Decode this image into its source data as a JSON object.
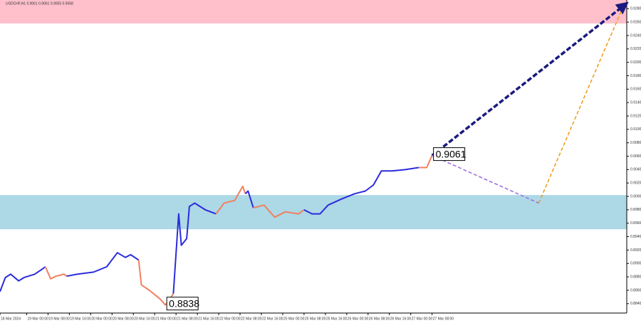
{
  "chart_data": {
    "type": "line",
    "title": "USDCHF,H1 0.9061 0.9061 0.9055 0.9058",
    "xlim": [
      0,
      235
    ],
    "ylim": [
      0.8826,
      0.9293
    ],
    "xticks": [
      {
        "value": 0,
        "label": "18 Mar 2024"
      },
      {
        "value": 10,
        "label": "19 Mar 00:00"
      },
      {
        "value": 18,
        "label": "19 Mar 08:00"
      },
      {
        "value": 26,
        "label": "19 Mar 16:00"
      },
      {
        "value": 34,
        "label": "20 Mar 00:00"
      },
      {
        "value": 42,
        "label": "20 Mar 08:00"
      },
      {
        "value": 50,
        "label": "20 Mar 16:00"
      },
      {
        "value": 58,
        "label": "21 Mar 00:00"
      },
      {
        "value": 66,
        "label": "21 Mar 08:00"
      },
      {
        "value": 74,
        "label": "21 Mar 16:00"
      },
      {
        "value": 82,
        "label": "22 Mar 00:00"
      },
      {
        "value": 90,
        "label": "22 Mar 08:00"
      },
      {
        "value": 98,
        "label": "22 Mar 16:00"
      },
      {
        "value": 106,
        "label": "25 Mar 00:00"
      },
      {
        "value": 114,
        "label": "25 Mar 08:00"
      },
      {
        "value": 122,
        "label": "25 Mar 16:00"
      },
      {
        "value": 130,
        "label": "26 Mar 00:00"
      },
      {
        "value": 138,
        "label": "26 Mar 08:00"
      },
      {
        "value": 146,
        "label": "26 Mar 16:00"
      },
      {
        "value": 154,
        "label": "27 Mar 00:00"
      },
      {
        "value": 162,
        "label": "27 Mar 08:00"
      }
    ],
    "yticks": [
      {
        "value": 0.884,
        "label": "0.8840"
      },
      {
        "value": 0.886,
        "label": "0.8860"
      },
      {
        "value": 0.888,
        "label": "0.8880"
      },
      {
        "value": 0.89,
        "label": "0.8900"
      },
      {
        "value": 0.892,
        "label": "0.8920"
      },
      {
        "value": 0.894,
        "label": "0.8940"
      },
      {
        "value": 0.896,
        "label": "0.8960"
      },
      {
        "value": 0.898,
        "label": "0.8980"
      },
      {
        "value": 0.9,
        "label": "0.9000"
      },
      {
        "value": 0.902,
        "label": "0.9020"
      },
      {
        "value": 0.904,
        "label": "0.9040"
      },
      {
        "value": 0.906,
        "label": "0.9060"
      },
      {
        "value": 0.908,
        "label": "0.9080"
      },
      {
        "value": 0.91,
        "label": "0.9100"
      },
      {
        "value": 0.912,
        "label": "0.9120"
      },
      {
        "value": 0.914,
        "label": "0.9140"
      },
      {
        "value": 0.916,
        "label": "0.9160"
      },
      {
        "value": 0.918,
        "label": "0.9180"
      },
      {
        "value": 0.92,
        "label": "0.9200"
      },
      {
        "value": 0.922,
        "label": "0.9220"
      },
      {
        "value": 0.924,
        "label": "0.9240"
      },
      {
        "value": 0.926,
        "label": "0.9260"
      },
      {
        "value": 0.928,
        "label": "0.9280"
      }
    ],
    "zones": [
      {
        "color": "#ffc0cb",
        "from": 0.9258,
        "to": 0.9293
      },
      {
        "color": "#add8e6",
        "from": 0.8951,
        "to": 0.9002
      }
    ],
    "segments": [
      {
        "color": "#2b2bdd",
        "x": [
          0,
          2,
          4,
          7,
          9,
          13,
          16,
          17
        ],
        "values": [
          0.8858,
          0.8879,
          0.8884,
          0.8874,
          0.8879,
          0.8884,
          0.8892,
          0.8895
        ]
      },
      {
        "color": "#f08060",
        "x": [
          17,
          19,
          21,
          24,
          25
        ],
        "values": [
          0.8895,
          0.8877,
          0.8881,
          0.8884,
          0.8881
        ]
      },
      {
        "color": "#2b2bdd",
        "x": [
          25,
          29,
          35,
          40,
          44,
          47,
          49,
          52
        ],
        "values": [
          0.8881,
          0.8884,
          0.8887,
          0.8895,
          0.8916,
          0.8909,
          0.8913,
          0.8905
        ]
      },
      {
        "color": "#f08060",
        "x": [
          52,
          53,
          56,
          60,
          62,
          64,
          65
        ],
        "values": [
          0.8905,
          0.8868,
          0.886,
          0.8847,
          0.8838,
          0.8849,
          0.8855
        ]
      },
      {
        "color": "#2b2bdd",
        "x": [
          65,
          67,
          68,
          70,
          71,
          73,
          77,
          81
        ],
        "values": [
          0.8855,
          0.8974,
          0.8927,
          0.8937,
          0.8985,
          0.899,
          0.898,
          0.8974
        ]
      },
      {
        "color": "#f08060",
        "x": [
          81,
          84,
          88,
          91,
          92
        ],
        "values": [
          0.8974,
          0.899,
          0.8994,
          0.9015,
          0.9004
        ]
      },
      {
        "color": "#2b2bdd",
        "x": [
          92,
          93,
          95
        ],
        "values": [
          0.9004,
          0.9008,
          0.8983
        ]
      },
      {
        "color": "#f08060",
        "x": [
          95,
          99,
          103,
          107,
          112,
          114
        ],
        "values": [
          0.8983,
          0.8987,
          0.8969,
          0.8977,
          0.8974,
          0.898
        ]
      },
      {
        "color": "#2b2bdd",
        "x": [
          114,
          117,
          120,
          123,
          128,
          133,
          137,
          140,
          143,
          147,
          152,
          157
        ],
        "values": [
          0.898,
          0.8974,
          0.8974,
          0.8987,
          0.8996,
          0.9004,
          0.9008,
          0.9017,
          0.9038,
          0.9038,
          0.904,
          0.9043
        ]
      },
      {
        "color": "#f08060",
        "x": [
          157,
          160,
          162
        ],
        "values": [
          0.9043,
          0.9043,
          0.9061
        ]
      }
    ],
    "forecast": [
      {
        "color": "#1a1a80",
        "x": [
          162,
          235
        ],
        "values": [
          0.9061,
          0.9288
        ]
      },
      {
        "color": "#a070e0",
        "x": [
          162,
          202
        ],
        "values": [
          0.9061,
          0.899
        ]
      },
      {
        "color": "#f0a020",
        "x": [
          202,
          233
        ],
        "values": [
          0.899,
          0.9277
        ]
      }
    ],
    "annotations": [
      {
        "text": "0.9061",
        "x": 162,
        "y": 0.9061
      },
      {
        "text": "0.8838",
        "x": 62,
        "y": 0.8838
      }
    ]
  }
}
